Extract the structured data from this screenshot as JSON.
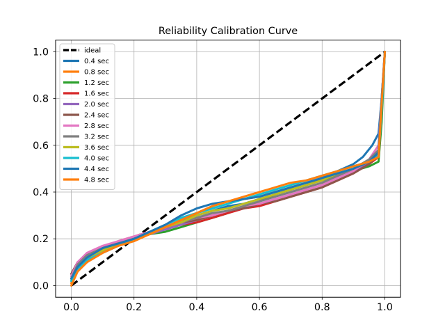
{
  "chart_data": {
    "type": "line",
    "title": "Reliability Calibration Curve",
    "xlabel": "",
    "ylabel": "",
    "xlim": [
      -0.05,
      1.05
    ],
    "ylim": [
      -0.05,
      1.05
    ],
    "x_ticks": [
      0.0,
      0.2,
      0.4,
      0.6,
      0.8,
      1.0
    ],
    "y_ticks": [
      0.0,
      0.2,
      0.4,
      0.6,
      0.8,
      1.0
    ],
    "grid": true,
    "legend_position": "top-left",
    "ideal": {
      "name": "ideal",
      "color": "#000000",
      "x": [
        0.0,
        1.0
      ],
      "y": [
        0.0,
        1.0
      ]
    },
    "series": [
      {
        "name": "0.4 sec",
        "color": "#1f77b4",
        "x": [
          0.0,
          0.02,
          0.05,
          0.1,
          0.15,
          0.2,
          0.25,
          0.3,
          0.35,
          0.4,
          0.45,
          0.5,
          0.55,
          0.6,
          0.65,
          0.7,
          0.75,
          0.8,
          0.85,
          0.9,
          0.93,
          0.96,
          0.98,
          0.99,
          1.0
        ],
        "y": [
          0.02,
          0.08,
          0.12,
          0.15,
          0.18,
          0.2,
          0.22,
          0.25,
          0.28,
          0.3,
          0.32,
          0.34,
          0.35,
          0.37,
          0.39,
          0.41,
          0.43,
          0.46,
          0.49,
          0.52,
          0.55,
          0.6,
          0.65,
          0.8,
          1.0
        ]
      },
      {
        "name": "0.8 sec",
        "color": "#ff7f0e",
        "x": [
          0.0,
          0.02,
          0.05,
          0.1,
          0.15,
          0.2,
          0.25,
          0.3,
          0.35,
          0.4,
          0.45,
          0.5,
          0.55,
          0.6,
          0.65,
          0.7,
          0.75,
          0.8,
          0.85,
          0.9,
          0.95,
          0.98,
          0.99,
          1.0
        ],
        "y": [
          0.01,
          0.06,
          0.1,
          0.14,
          0.17,
          0.2,
          0.22,
          0.25,
          0.28,
          0.31,
          0.34,
          0.36,
          0.37,
          0.38,
          0.4,
          0.42,
          0.44,
          0.46,
          0.47,
          0.5,
          0.52,
          0.55,
          0.75,
          1.0
        ]
      },
      {
        "name": "1.2 sec",
        "color": "#2ca02c",
        "x": [
          0.0,
          0.02,
          0.05,
          0.1,
          0.15,
          0.2,
          0.25,
          0.3,
          0.35,
          0.4,
          0.45,
          0.5,
          0.55,
          0.6,
          0.65,
          0.7,
          0.75,
          0.8,
          0.85,
          0.9,
          0.95,
          0.98,
          0.99,
          1.0
        ],
        "y": [
          0.03,
          0.08,
          0.12,
          0.15,
          0.18,
          0.2,
          0.22,
          0.23,
          0.25,
          0.27,
          0.29,
          0.31,
          0.34,
          0.36,
          0.39,
          0.41,
          0.43,
          0.45,
          0.47,
          0.49,
          0.51,
          0.53,
          0.7,
          1.0
        ]
      },
      {
        "name": "1.6 sec",
        "color": "#d62728",
        "x": [
          0.0,
          0.02,
          0.05,
          0.1,
          0.15,
          0.2,
          0.25,
          0.3,
          0.35,
          0.4,
          0.45,
          0.5,
          0.55,
          0.6,
          0.65,
          0.7,
          0.75,
          0.8,
          0.85,
          0.9,
          0.95,
          0.98,
          0.99,
          1.0
        ],
        "y": [
          0.04,
          0.1,
          0.13,
          0.16,
          0.19,
          0.21,
          0.23,
          0.25,
          0.26,
          0.27,
          0.29,
          0.31,
          0.33,
          0.34,
          0.36,
          0.38,
          0.4,
          0.42,
          0.45,
          0.48,
          0.52,
          0.55,
          0.75,
          1.0
        ]
      },
      {
        "name": "2.0 sec",
        "color": "#9467bd",
        "x": [
          0.0,
          0.02,
          0.05,
          0.1,
          0.15,
          0.2,
          0.25,
          0.3,
          0.35,
          0.4,
          0.45,
          0.5,
          0.55,
          0.6,
          0.65,
          0.7,
          0.75,
          0.8,
          0.85,
          0.9,
          0.95,
          0.98,
          0.99,
          1.0
        ],
        "y": [
          0.03,
          0.09,
          0.13,
          0.16,
          0.18,
          0.2,
          0.22,
          0.24,
          0.26,
          0.28,
          0.3,
          0.32,
          0.33,
          0.35,
          0.37,
          0.39,
          0.41,
          0.43,
          0.46,
          0.49,
          0.53,
          0.58,
          0.8,
          1.0
        ]
      },
      {
        "name": "2.4 sec",
        "color": "#8c564b",
        "x": [
          0.0,
          0.02,
          0.05,
          0.1,
          0.15,
          0.2,
          0.25,
          0.3,
          0.35,
          0.4,
          0.45,
          0.5,
          0.55,
          0.6,
          0.65,
          0.7,
          0.75,
          0.8,
          0.85,
          0.9,
          0.95,
          0.98,
          0.99,
          1.0
        ],
        "y": [
          0.05,
          0.1,
          0.13,
          0.16,
          0.18,
          0.2,
          0.23,
          0.25,
          0.27,
          0.28,
          0.3,
          0.32,
          0.33,
          0.35,
          0.36,
          0.38,
          0.4,
          0.42,
          0.45,
          0.48,
          0.52,
          0.56,
          0.78,
          1.0
        ]
      },
      {
        "name": "2.8 sec",
        "color": "#e377c2",
        "x": [
          0.0,
          0.02,
          0.05,
          0.1,
          0.15,
          0.2,
          0.25,
          0.3,
          0.35,
          0.4,
          0.45,
          0.5,
          0.55,
          0.6,
          0.65,
          0.7,
          0.75,
          0.8,
          0.85,
          0.9,
          0.95,
          0.98,
          0.99,
          1.0
        ],
        "y": [
          0.04,
          0.1,
          0.14,
          0.17,
          0.19,
          0.21,
          0.23,
          0.25,
          0.27,
          0.29,
          0.3,
          0.32,
          0.34,
          0.35,
          0.37,
          0.39,
          0.41,
          0.43,
          0.46,
          0.49,
          0.54,
          0.6,
          0.8,
          1.0
        ]
      },
      {
        "name": "3.2 sec",
        "color": "#7f7f7f",
        "x": [
          0.0,
          0.02,
          0.05,
          0.1,
          0.15,
          0.2,
          0.25,
          0.3,
          0.35,
          0.4,
          0.45,
          0.5,
          0.55,
          0.6,
          0.65,
          0.7,
          0.75,
          0.8,
          0.85,
          0.9,
          0.95,
          0.98,
          0.99,
          1.0
        ],
        "y": [
          0.03,
          0.09,
          0.13,
          0.16,
          0.18,
          0.2,
          0.23,
          0.25,
          0.27,
          0.29,
          0.31,
          0.32,
          0.34,
          0.36,
          0.38,
          0.4,
          0.42,
          0.44,
          0.47,
          0.5,
          0.54,
          0.58,
          0.78,
          1.0
        ]
      },
      {
        "name": "3.6 sec",
        "color": "#bcbd22",
        "x": [
          0.0,
          0.02,
          0.05,
          0.1,
          0.15,
          0.2,
          0.25,
          0.3,
          0.35,
          0.4,
          0.45,
          0.5,
          0.55,
          0.6,
          0.65,
          0.7,
          0.75,
          0.8,
          0.85,
          0.9,
          0.95,
          0.98,
          0.99,
          1.0
        ],
        "y": [
          0.03,
          0.08,
          0.12,
          0.15,
          0.18,
          0.2,
          0.22,
          0.25,
          0.27,
          0.3,
          0.32,
          0.33,
          0.35,
          0.37,
          0.39,
          0.41,
          0.43,
          0.45,
          0.48,
          0.5,
          0.53,
          0.56,
          0.76,
          1.0
        ]
      },
      {
        "name": "4.0 sec",
        "color": "#17becf",
        "x": [
          0.0,
          0.02,
          0.05,
          0.1,
          0.15,
          0.2,
          0.25,
          0.3,
          0.35,
          0.4,
          0.45,
          0.5,
          0.55,
          0.6,
          0.65,
          0.7,
          0.75,
          0.8,
          0.85,
          0.9,
          0.95,
          0.98,
          0.99,
          1.0
        ],
        "y": [
          0.02,
          0.07,
          0.11,
          0.14,
          0.17,
          0.2,
          0.23,
          0.26,
          0.29,
          0.31,
          0.33,
          0.35,
          0.37,
          0.39,
          0.41,
          0.43,
          0.45,
          0.47,
          0.49,
          0.51,
          0.53,
          0.56,
          0.75,
          1.0
        ]
      },
      {
        "name": "4.4 sec",
        "color": "#1f77b4",
        "x": [
          0.0,
          0.02,
          0.05,
          0.1,
          0.15,
          0.2,
          0.25,
          0.3,
          0.35,
          0.4,
          0.45,
          0.5,
          0.55,
          0.6,
          0.65,
          0.7,
          0.75,
          0.8,
          0.85,
          0.9,
          0.95,
          0.98,
          0.99,
          1.0
        ],
        "y": [
          0.03,
          0.08,
          0.12,
          0.16,
          0.18,
          0.2,
          0.23,
          0.26,
          0.3,
          0.33,
          0.35,
          0.36,
          0.37,
          0.38,
          0.4,
          0.42,
          0.44,
          0.46,
          0.48,
          0.5,
          0.53,
          0.57,
          0.8,
          1.0
        ]
      },
      {
        "name": "4.8 sec",
        "color": "#ff7f0e",
        "x": [
          0.0,
          0.02,
          0.05,
          0.1,
          0.15,
          0.2,
          0.25,
          0.3,
          0.35,
          0.4,
          0.45,
          0.5,
          0.55,
          0.6,
          0.65,
          0.7,
          0.75,
          0.8,
          0.85,
          0.9,
          0.95,
          0.98,
          0.99,
          1.0
        ],
        "y": [
          0.0,
          0.06,
          0.1,
          0.14,
          0.17,
          0.19,
          0.22,
          0.25,
          0.28,
          0.31,
          0.34,
          0.36,
          0.38,
          0.4,
          0.42,
          0.44,
          0.45,
          0.47,
          0.49,
          0.51,
          0.53,
          0.55,
          0.78,
          1.0
        ]
      }
    ]
  }
}
